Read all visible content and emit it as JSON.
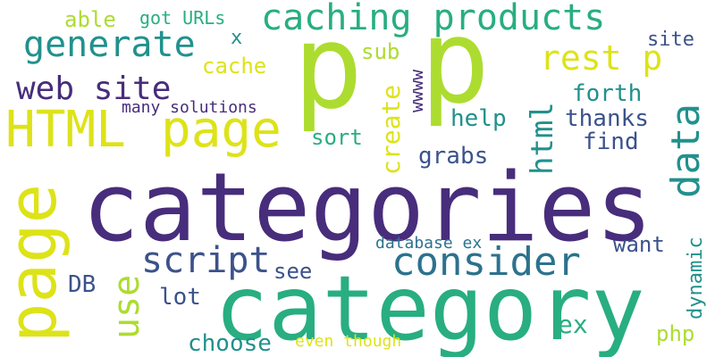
{
  "word_cloud": {
    "background": "#ffffff",
    "palette": [
      "#472d7b",
      "#3b528b",
      "#2c728e",
      "#21918c",
      "#28ae80",
      "#5ec962",
      "#addc30",
      "#dde318"
    ],
    "words": [
      "categories",
      "category",
      "p",
      "p",
      "page",
      "HTML",
      "page",
      "caching products",
      "consider",
      "data",
      "generate",
      "web site",
      "rest p",
      "script",
      "use",
      "html",
      "create",
      "dynamic",
      "site",
      "forth",
      "thanks",
      "help",
      "find",
      "sort",
      "grabs",
      "want",
      "see",
      "lot",
      "DB",
      "choose",
      "php",
      "ex",
      "even though",
      "database ex",
      "many solutions",
      "able",
      "got URLs",
      "cache",
      "sub",
      "x",
      "wwww"
    ]
  }
}
